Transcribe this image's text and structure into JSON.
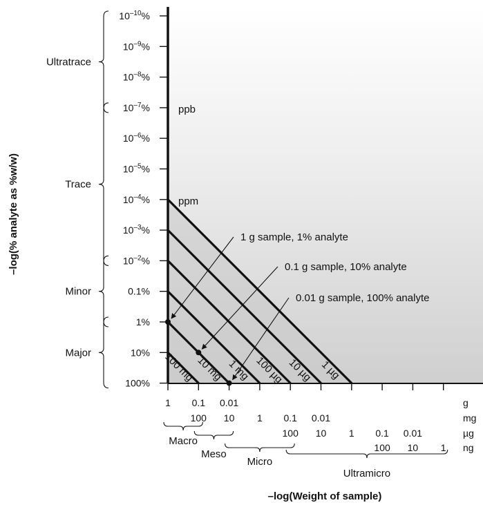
{
  "figure": {
    "y_axis_title": "–log(% analyte as %w/w)",
    "x_axis_title": "–log(Weight of sample)",
    "y_ticks": [
      {
        "base": "10",
        "exp": "–10",
        "suffix": "%"
      },
      {
        "base": "10",
        "exp": "–9",
        "suffix": "%"
      },
      {
        "base": "10",
        "exp": "–8",
        "suffix": "%"
      },
      {
        "base": "10",
        "exp": "–7",
        "suffix": "%"
      },
      {
        "base": "10",
        "exp": "–6",
        "suffix": "%"
      },
      {
        "base": "10",
        "exp": "–5",
        "suffix": "%"
      },
      {
        "base": "10",
        "exp": "–4",
        "suffix": "%"
      },
      {
        "base": "10",
        "exp": "–3",
        "suffix": "%"
      },
      {
        "base": "10",
        "exp": "–2",
        "suffix": "%"
      },
      {
        "base": "0.1%",
        "exp": "",
        "suffix": ""
      },
      {
        "base": "1%",
        "exp": "",
        "suffix": ""
      },
      {
        "base": "10%",
        "exp": "",
        "suffix": ""
      },
      {
        "base": "100%",
        "exp": "",
        "suffix": ""
      }
    ],
    "concentration_labels": {
      "ppb": "ppb",
      "ppm": "ppm"
    },
    "analyte_categories": [
      {
        "name": "Ultratrace",
        "from_tick": 0,
        "to_tick": 3
      },
      {
        "name": "Trace",
        "from_tick": 3,
        "to_tick": 8
      },
      {
        "name": "Minor",
        "from_tick": 8,
        "to_tick": 10
      },
      {
        "name": "Major",
        "from_tick": 10,
        "to_tick": 12
      }
    ],
    "x_unit_rows": [
      {
        "unit": "g",
        "labels": [
          "1",
          "0.1",
          "0.01"
        ],
        "start_col": 0
      },
      {
        "unit": "mg",
        "labels": [
          "100",
          "10",
          "1",
          "0.1",
          "0.01"
        ],
        "start_col": 1
      },
      {
        "unit": "µg",
        "labels": [
          "100",
          "10",
          "1",
          "0.1",
          "0.01"
        ],
        "start_col": 4
      },
      {
        "unit": "ng",
        "labels": [
          "100",
          "10",
          "1"
        ],
        "start_col": 7
      }
    ],
    "sample_categories": [
      {
        "name": "Macro",
        "from_col": 0,
        "to_col": 1
      },
      {
        "name": "Meso",
        "from_col": 1,
        "to_col": 2
      },
      {
        "name": "Micro",
        "from_col": 2,
        "to_col": 4
      },
      {
        "name": "Ultramicro",
        "from_col": 4,
        "to_col": 9
      }
    ],
    "diagonal_lines": [
      {
        "label": "100 mg",
        "start_tick": 11
      },
      {
        "label": "10 mg",
        "start_tick": 10
      },
      {
        "label": "1 mg",
        "start_tick": 9
      },
      {
        "label": "100 µg",
        "start_tick": 8
      },
      {
        "label": "10 µg",
        "start_tick": 7
      },
      {
        "label": "1 µg",
        "start_tick": 6
      }
    ],
    "annotations": [
      {
        "text": "1 g sample, 1% analyte",
        "tick": 10,
        "col": 0
      },
      {
        "text": "0.1 g sample, 10% analyte",
        "tick": 11,
        "col": 1
      },
      {
        "text": "0.01 g sample, 100% analyte",
        "tick": 12,
        "col": 2
      }
    ]
  }
}
